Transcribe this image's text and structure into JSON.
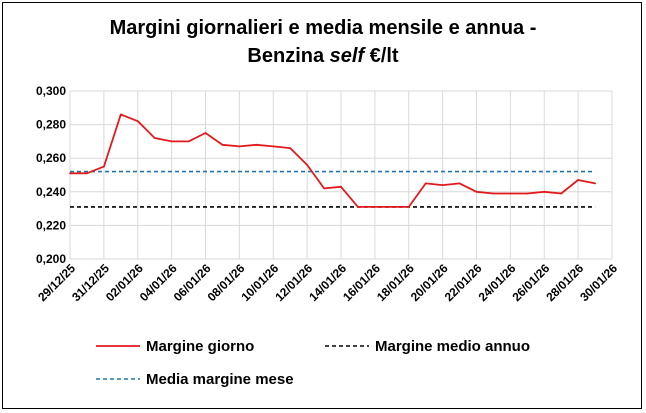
{
  "chart_data": {
    "type": "line",
    "title_line1": "Margini giornalieri e media mensile e annua -",
    "title_line2_prefix": "Benzina ",
    "title_line2_italic": "self",
    "title_line2_suffix": " €/lt",
    "ylim": [
      0.2,
      0.3
    ],
    "yticks": [
      "0,300",
      "0,280",
      "0,260",
      "0,240",
      "0,220",
      "0,200"
    ],
    "ytick_values": [
      0.3,
      0.28,
      0.26,
      0.24,
      0.22,
      0.2
    ],
    "xlim": [
      "2025-12-29",
      "2026-01-30"
    ],
    "xticks": [
      "29/12/25",
      "31/12/25",
      "02/01/26",
      "04/01/26",
      "06/01/26",
      "08/01/26",
      "10/01/26",
      "12/01/26",
      "14/01/26",
      "16/01/26",
      "18/01/26",
      "20/01/26",
      "22/01/26",
      "24/01/26",
      "26/01/26",
      "28/01/26",
      "30/01/26"
    ],
    "xtick_dates": [
      "2025-12-29",
      "2025-12-31",
      "2026-01-02",
      "2026-01-04",
      "2026-01-06",
      "2026-01-08",
      "2026-01-10",
      "2026-01-12",
      "2026-01-14",
      "2026-01-16",
      "2026-01-18",
      "2026-01-20",
      "2026-01-22",
      "2026-01-24",
      "2026-01-26",
      "2026-01-28",
      "2026-01-30"
    ],
    "grid": true,
    "legend_placement": "bottom",
    "series": [
      {
        "name": "Margine giorno",
        "color": "#e31a1c",
        "style": "solid",
        "x": [
          "2025-12-29",
          "2025-12-30",
          "2025-12-31",
          "2026-01-01",
          "2026-01-02",
          "2026-01-03",
          "2026-01-04",
          "2026-01-05",
          "2026-01-06",
          "2026-01-07",
          "2026-01-08",
          "2026-01-09",
          "2026-01-10",
          "2026-01-11",
          "2026-01-12",
          "2026-01-13",
          "2026-01-14",
          "2026-01-15",
          "2026-01-16",
          "2026-01-17",
          "2026-01-18",
          "2026-01-19",
          "2026-01-20",
          "2026-01-21",
          "2026-01-22",
          "2026-01-23",
          "2026-01-24",
          "2026-01-25",
          "2026-01-26",
          "2026-01-27",
          "2026-01-28",
          "2026-01-29"
        ],
        "values": [
          0.251,
          0.251,
          0.255,
          0.286,
          0.282,
          0.272,
          0.27,
          0.27,
          0.275,
          0.268,
          0.267,
          0.268,
          0.267,
          0.266,
          0.256,
          0.242,
          0.243,
          0.231,
          0.231,
          0.231,
          0.231,
          0.245,
          0.244,
          0.245,
          0.24,
          0.239,
          0.239,
          0.239,
          0.24,
          0.239,
          0.247,
          0.245
        ]
      },
      {
        "name": "Margine medio annuo",
        "color": "#000000",
        "style": "dashed",
        "x": [
          "2025-12-29",
          "2026-01-29"
        ],
        "values": [
          0.231,
          0.231
        ]
      },
      {
        "name": "Media margine mese",
        "color": "#1f77b4",
        "style": "dashed",
        "x": [
          "2025-12-29",
          "2026-01-29"
        ],
        "values": [
          0.252,
          0.252
        ]
      }
    ]
  }
}
